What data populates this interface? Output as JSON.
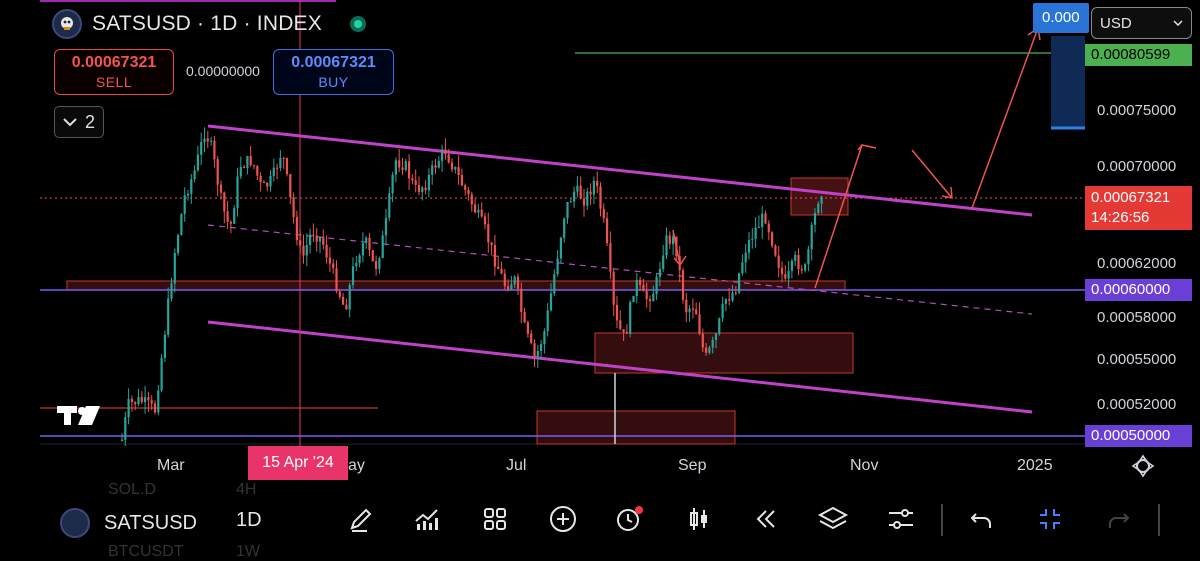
{
  "header": {
    "title": "SATSUSD · 1D · INDEX"
  },
  "trade": {
    "sell_price": "0.00067321",
    "sell_label": "SELL",
    "spread": "0.00000000",
    "buy_price": "0.00067321",
    "buy_label": "BUY"
  },
  "indicators": {
    "count": "2"
  },
  "currency": {
    "selected": "USD"
  },
  "price_axis": {
    "top_tag": "0.000",
    "labels": [
      "0.00075000",
      "0.00070000",
      "0.00062000",
      "0.00058000",
      "0.00055000",
      "0.00052000"
    ],
    "green_tag": "0.00080599",
    "current_price": "0.00067321",
    "countdown": "14:26:56",
    "level_60": "0.00060000",
    "level_50": "0.00050000"
  },
  "time_axis": {
    "labels": [
      "Mar",
      "Jul",
      "Sep",
      "Nov",
      "2025"
    ],
    "partial_may": "ay",
    "crosshair_date": "15 Apr '24"
  },
  "bottom_bar": {
    "symbol": "SATSUSD",
    "timeframe": "1D",
    "ghost_above": "SOL.D",
    "ghost_above_tf": "4H",
    "ghost_below": "BTCUSDT",
    "ghost_below_tf": "1W"
  },
  "colors": {
    "up": "#26a69a",
    "down": "#ef5350",
    "channel": "#c042c8",
    "level": "#7b5cf0",
    "zone": "#c0392b"
  },
  "chart_data": {
    "type": "candlestick",
    "x_range": [
      "2024-01-20",
      "2025-01-10"
    ],
    "y_range": [
      0.00048,
      0.00082
    ],
    "levels": [
      0.0006,
      0.0005,
      0.00080599
    ],
    "current_price": 0.00067321
  }
}
